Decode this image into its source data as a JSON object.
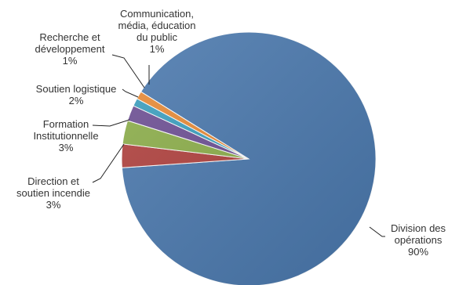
{
  "chart_data": {
    "type": "pie",
    "title": "",
    "legend": "none",
    "slices": [
      {
        "label_lines": [
          "Division des",
          "opérations"
        ],
        "value": 90,
        "value_label": "90%",
        "color": "#4a78ad"
      },
      {
        "label_lines": [
          "Direction et",
          "soutien incendie"
        ],
        "value": 3,
        "value_label": "3%",
        "color": "#b0413e"
      },
      {
        "label_lines": [
          "Formation",
          "Institutionnelle"
        ],
        "value": 3,
        "value_label": "3%",
        "color": "#8cae4a"
      },
      {
        "label_lines": [
          "Soutien logistique"
        ],
        "value": 2,
        "value_label": "2%",
        "color": "#6d4f94"
      },
      {
        "label_lines": [
          "Recherche et",
          "développement"
        ],
        "value": 1,
        "value_label": "1%",
        "color": "#3a9fbf"
      },
      {
        "label_lines": [
          "Communication,",
          "média, éducation",
          "du public"
        ],
        "value": 1,
        "value_label": "1%",
        "color": "#e88a35"
      }
    ]
  }
}
